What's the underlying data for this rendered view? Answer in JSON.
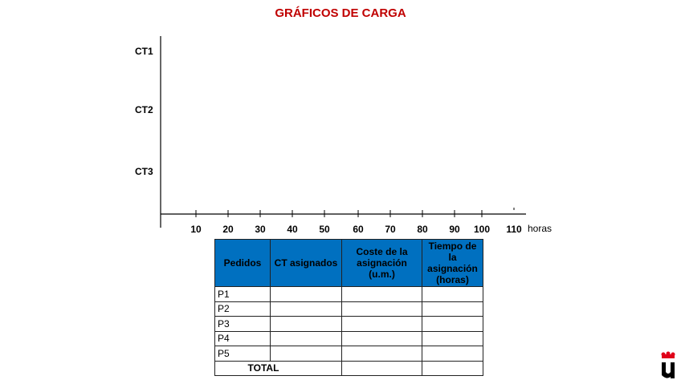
{
  "title": "GRÁFICOS DE CARGA",
  "chart": {
    "rows": [
      "CT1",
      "CT2",
      "CT3"
    ],
    "ticks": [
      "10",
      "20",
      "30",
      "40",
      "50",
      "60",
      "70",
      "80",
      "90",
      "100",
      "110"
    ],
    "unit": "horas"
  },
  "table": {
    "headers": [
      "Pedidos",
      "CT asignados",
      "Coste de la asignación (u.m.)",
      "Tiempo de la asignación (horas)"
    ],
    "rows": [
      "P1",
      "P2",
      "P3",
      "P4",
      "P5"
    ],
    "total": "TOTAL",
    "header_color": "#0070c0"
  },
  "logo": {
    "text": "U"
  }
}
